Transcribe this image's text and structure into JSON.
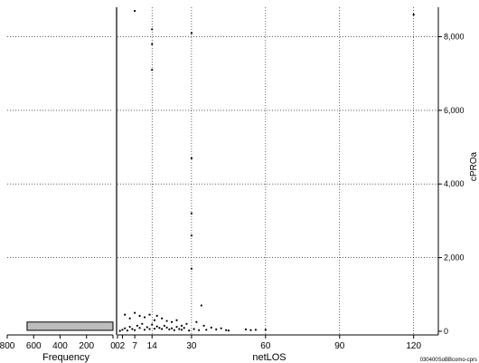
{
  "chart_data": [
    {
      "type": "bar",
      "orientation": "horizontal",
      "xlabel": "Frequency",
      "xlim": [
        800,
        0
      ],
      "x_ticks": [
        800,
        600,
        400,
        200,
        0
      ],
      "bins": [
        {
          "from": 0,
          "to": 250,
          "frequency": 650
        }
      ],
      "grid": "horizontal dotted"
    },
    {
      "type": "scatter",
      "xlabel": "netLOS",
      "ylabel": "cPROa",
      "xlim": [
        0,
        130
      ],
      "ylim": [
        -100,
        8800
      ],
      "x_ticks": [
        0,
        2,
        7,
        14,
        30,
        60,
        90,
        120
      ],
      "y_ticks": [
        0,
        2000,
        4000,
        6000,
        8000
      ],
      "y_tick_labels": [
        "0",
        "2,000",
        "4,000",
        "6,000",
        "8,000"
      ],
      "y_axis_position": "right",
      "grid": "dotted",
      "points": [
        [
          7,
          8700
        ],
        [
          14,
          8200
        ],
        [
          14,
          7800
        ],
        [
          14,
          7100
        ],
        [
          30,
          8100
        ],
        [
          30,
          4700
        ],
        [
          30,
          3200
        ],
        [
          30,
          2600
        ],
        [
          30,
          1700
        ],
        [
          34,
          700
        ],
        [
          120,
          8600
        ],
        [
          3,
          450
        ],
        [
          5,
          350
        ],
        [
          7,
          500
        ],
        [
          9,
          420
        ],
        [
          11,
          380
        ],
        [
          13,
          450
        ],
        [
          15,
          300
        ],
        [
          16,
          420
        ],
        [
          18,
          350
        ],
        [
          20,
          280
        ],
        [
          22,
          250
        ],
        [
          24,
          300
        ],
        [
          26,
          150
        ],
        [
          28,
          200
        ],
        [
          32,
          250
        ],
        [
          35,
          150
        ],
        [
          38,
          100
        ],
        [
          40,
          50
        ],
        [
          42,
          80
        ],
        [
          44,
          30
        ],
        [
          45,
          20
        ],
        [
          1,
          10
        ],
        [
          2,
          40
        ],
        [
          3,
          80
        ],
        [
          4,
          20
        ],
        [
          5,
          120
        ],
        [
          6,
          60
        ],
        [
          7,
          30
        ],
        [
          8,
          150
        ],
        [
          9,
          90
        ],
        [
          10,
          200
        ],
        [
          11,
          40
        ],
        [
          12,
          110
        ],
        [
          13,
          60
        ],
        [
          14,
          180
        ],
        [
          15,
          70
        ],
        [
          16,
          130
        ],
        [
          17,
          90
        ],
        [
          18,
          60
        ],
        [
          19,
          150
        ],
        [
          20,
          100
        ],
        [
          21,
          50
        ],
        [
          22,
          80
        ],
        [
          23,
          30
        ],
        [
          24,
          120
        ],
        [
          25,
          60
        ],
        [
          26,
          40
        ],
        [
          27,
          90
        ],
        [
          29,
          20
        ],
        [
          31,
          60
        ],
        [
          33,
          30
        ],
        [
          36,
          40
        ],
        [
          52,
          50
        ],
        [
          54,
          30
        ],
        [
          56,
          40
        ],
        [
          60,
          40
        ]
      ]
    }
  ],
  "footer": {
    "code": "030400SoBBcomo-cprs"
  }
}
